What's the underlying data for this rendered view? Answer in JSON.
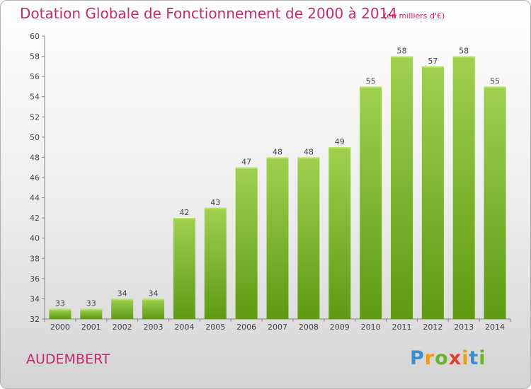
{
  "title": "Dotation Globale de Fonctionnement de 2000 à 2014",
  "subtitle": "(en milliers d'€)",
  "commune": "AUDEMBERT",
  "logo": {
    "p": "P",
    "r": "r",
    "o": "o",
    "x": "x",
    "i1": "i",
    "t": "t",
    "i2": "i"
  },
  "colors": {
    "bar_top": "#9fd14f",
    "bar_bottom": "#5e9a12",
    "title": "#c42b6e"
  },
  "chart_data": {
    "type": "bar",
    "title": "Dotation Globale de Fonctionnement de 2000 à 2014",
    "subtitle": "(en milliers d'€)",
    "xlabel": "",
    "ylabel": "",
    "categories": [
      "2000",
      "2001",
      "2002",
      "2003",
      "2004",
      "2005",
      "2006",
      "2007",
      "2008",
      "2009",
      "2010",
      "2011",
      "2012",
      "2013",
      "2014"
    ],
    "values": [
      33,
      33,
      34,
      34,
      42,
      43,
      47,
      48,
      48,
      49,
      55,
      58,
      57,
      58,
      55
    ],
    "data_labels": [
      "33",
      "33",
      "34",
      "34",
      "42",
      "43",
      "47",
      "48",
      "48",
      "49",
      "55",
      "58",
      "57",
      "58",
      "55"
    ],
    "ylim": [
      32,
      60
    ],
    "yticks": [
      "32",
      "34",
      "36",
      "38",
      "40",
      "42",
      "44",
      "46",
      "48",
      "50",
      "52",
      "54",
      "56",
      "58",
      "60"
    ],
    "grid": false,
    "legend": "none"
  }
}
